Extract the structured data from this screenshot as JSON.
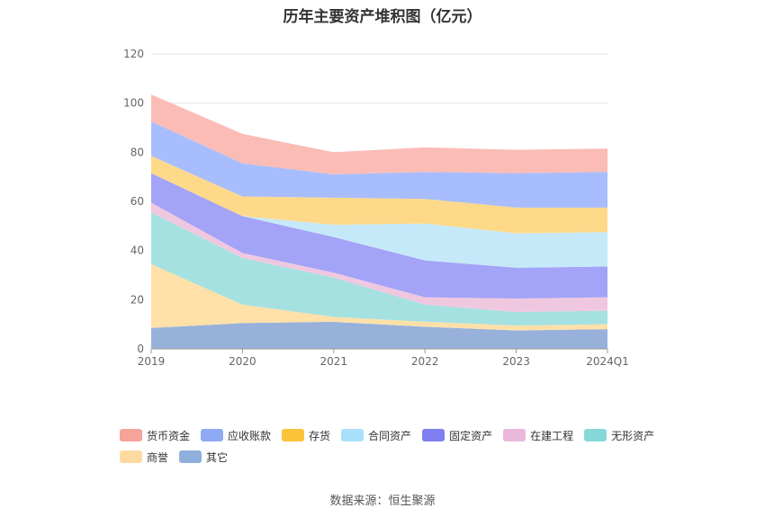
{
  "title": "历年主要资产堆积图（亿元）",
  "source": "数据来源：恒生聚源",
  "legend_rows": [
    [
      0,
      1,
      2,
      3,
      4,
      5,
      6
    ],
    [
      7,
      8
    ]
  ],
  "chart_data": {
    "type": "area",
    "stacked": true,
    "categories": [
      "2019",
      "2020",
      "2021",
      "2022",
      "2023",
      "2024Q1"
    ],
    "ylim": [
      0,
      120
    ],
    "yticks": [
      0,
      20,
      40,
      60,
      80,
      100,
      120
    ],
    "grid": true,
    "legend_position": "bottom",
    "series": [
      {
        "name": "其它",
        "color": "#98b1db",
        "values": [
          8.5,
          10.5,
          11,
          9,
          7.5,
          8
        ]
      },
      {
        "name": "商誉",
        "color": "#ffe0a8",
        "values": [
          26,
          7.5,
          2,
          2,
          2,
          2
        ]
      },
      {
        "name": "无形资产",
        "color": "#a5e1e1",
        "values": [
          21,
          19,
          16,
          7,
          5.5,
          5.5
        ]
      },
      {
        "name": "在建工程",
        "color": "#efc8e0",
        "values": [
          4,
          2,
          2,
          3,
          5.5,
          5.5
        ]
      },
      {
        "name": "固定资产",
        "color": "#a3a3f7",
        "values": [
          12,
          15,
          14.5,
          15,
          12.5,
          12.5
        ]
      },
      {
        "name": "合同资产",
        "color": "#c6e9fa",
        "values": [
          0,
          0,
          5,
          15,
          14,
          14
        ]
      },
      {
        "name": "存货",
        "color": "#ffd98a",
        "values": [
          7,
          8,
          11,
          10,
          10.5,
          10
        ]
      },
      {
        "name": "应收账款",
        "color": "#a8bdfd",
        "values": [
          14,
          13.5,
          9.5,
          11,
          14,
          14.5
        ]
      },
      {
        "name": "货币资金",
        "color": "#fbbcb6",
        "values": [
          11,
          12,
          9,
          10,
          9.5,
          9.5
        ]
      }
    ],
    "legend_order": [
      "货币资金",
      "应收账款",
      "存货",
      "合同资产",
      "固定资产",
      "在建工程",
      "无形资产",
      "商誉",
      "其它"
    ],
    "legend_colors": [
      "#f6a39a",
      "#8fa9f5",
      "#fbc43a",
      "#a8dffa",
      "#7f7ff0",
      "#eab8db",
      "#86d8d8",
      "#fddba0",
      "#8fb0dc"
    ]
  }
}
